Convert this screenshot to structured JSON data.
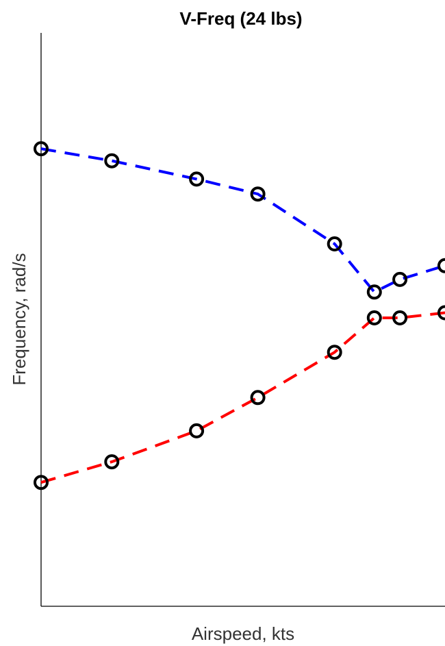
{
  "chart_data": {
    "type": "line",
    "title": "V-Freq (24 lbs)",
    "xlabel": "Airspeed, kts",
    "ylabel": "Frequency, rad/s",
    "xlim": [
      0,
      60
    ],
    "ylim": [
      0,
      100
    ],
    "grid": false,
    "legend": false,
    "series": [
      {
        "color": "#0000ff",
        "line_style": "dashed",
        "marker": "circle",
        "marker_color": "#000000",
        "x": [
          0,
          10.5,
          23.1,
          32.2,
          43.6,
          49.5,
          53.3,
          60
        ],
        "y": [
          79.8,
          77.7,
          74.5,
          71.9,
          63.2,
          54.8,
          57.0,
          59.4
        ]
      },
      {
        "color": "#ff0000",
        "line_style": "dashed",
        "marker": "circle",
        "marker_color": "#000000",
        "x": [
          0,
          10.5,
          23.1,
          32.2,
          43.6,
          49.5,
          53.3,
          60
        ],
        "y": [
          21.6,
          25.2,
          30.6,
          36.4,
          44.3,
          50.3,
          50.3,
          51.2
        ]
      }
    ]
  }
}
